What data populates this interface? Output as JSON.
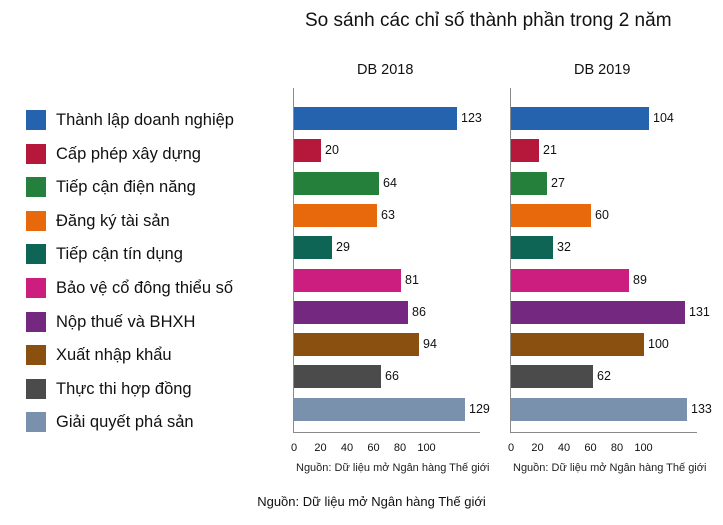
{
  "chart_data": {
    "type": "bar",
    "orientation": "horizontal",
    "title": "So sánh các chỉ số thành phần trong 2 năm",
    "categories": [
      "Thành lập doanh nghiệp",
      "Cấp phép xây dựng",
      "Tiếp cận điện năng",
      "Đăng ký tài sản",
      "Tiếp cận tín dụng",
      "Bảo vệ cổ đông thiểu số",
      "Nộp thuế và BHXH",
      "Xuất nhập khẩu",
      "Thực thi hợp đồng",
      "Giải quyết phá sản"
    ],
    "colors": [
      "#2563ae",
      "#b5183a",
      "#24803a",
      "#e8680c",
      "#0f6555",
      "#cc1e7e",
      "#74287f",
      "#8a5010",
      "#4b4b4b",
      "#7a91ad"
    ],
    "series": [
      {
        "name": "DB 2018",
        "values": [
          123,
          20,
          64,
          63,
          29,
          81,
          86,
          94,
          66,
          129
        ]
      },
      {
        "name": "DB 2019",
        "values": [
          104,
          21,
          27,
          60,
          32,
          89,
          131,
          100,
          62,
          133
        ]
      }
    ],
    "xticks": [
      "0",
      "20",
      "40",
      "60",
      "80",
      "100"
    ],
    "xlim": [
      0,
      140
    ],
    "xlabel": "",
    "ylabel": "",
    "grid": false,
    "legend_position": "left",
    "panel_source": "Nguồn: Dữ liệu mở Ngân hàng Thế giới",
    "footer_source": "Nguồn: Dữ liệu mở Ngân hàng Thế giới"
  }
}
